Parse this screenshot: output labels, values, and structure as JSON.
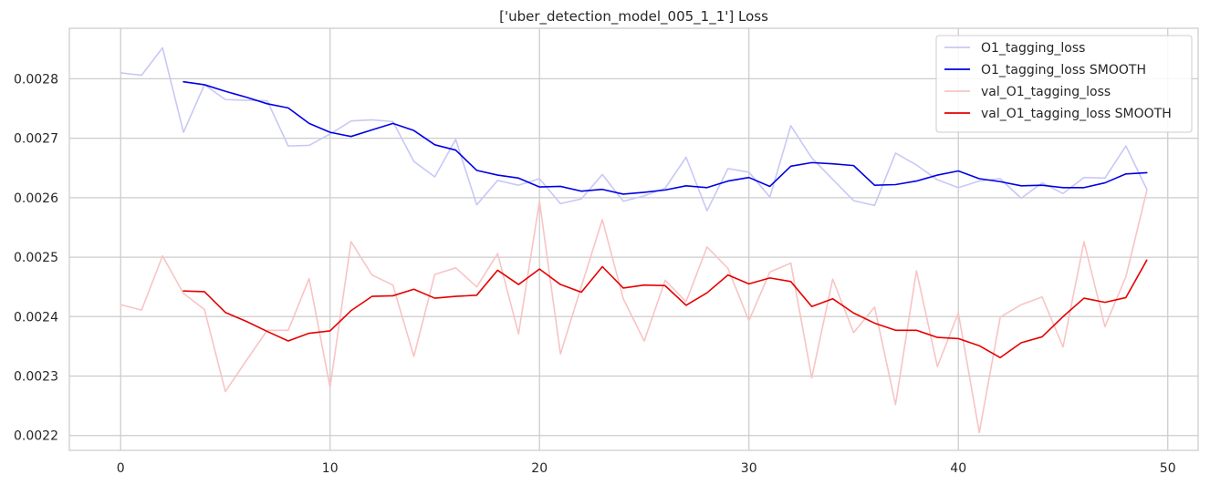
{
  "chart_data": {
    "type": "line",
    "title": "['uber_detection_model_005_1_1'] Loss",
    "xlabel": "",
    "ylabel": "",
    "xlim": [
      -2.45,
      51.45
    ],
    "ylim": [
      0.002175,
      0.002885
    ],
    "x_ticks": [
      0,
      10,
      20,
      30,
      40,
      50
    ],
    "y_ticks": [
      0.0022,
      0.0023,
      0.0024,
      0.0025,
      0.0026,
      0.0027,
      0.0028
    ],
    "grid": true,
    "legend_position": "top-right",
    "series": [
      {
        "name": "O1_tagging_loss",
        "color": "#c8c8f6",
        "x": [
          0,
          1,
          2,
          3,
          4,
          5,
          6,
          7,
          8,
          9,
          10,
          11,
          12,
          13,
          14,
          15,
          16,
          17,
          18,
          19,
          20,
          21,
          22,
          23,
          24,
          25,
          26,
          27,
          28,
          29,
          30,
          31,
          32,
          33,
          34,
          35,
          36,
          37,
          38,
          39,
          40,
          41,
          42,
          43,
          44,
          45,
          46,
          47,
          48,
          49
        ],
        "values": [
          0.00281,
          0.002806,
          0.002852,
          0.00271,
          0.00279,
          0.002765,
          0.002764,
          0.002763,
          0.002687,
          0.002688,
          0.002707,
          0.002729,
          0.002731,
          0.002728,
          0.002661,
          0.002635,
          0.002698,
          0.002588,
          0.002629,
          0.002621,
          0.002632,
          0.00259,
          0.002598,
          0.002639,
          0.002594,
          0.002603,
          0.002616,
          0.002668,
          0.002578,
          0.002649,
          0.002643,
          0.002601,
          0.002721,
          0.002667,
          0.002631,
          0.002595,
          0.002587,
          0.002675,
          0.002655,
          0.00263,
          0.002617,
          0.002628,
          0.002632,
          0.002599,
          0.002625,
          0.002607,
          0.002634,
          0.002633,
          0.002687,
          0.002614
        ]
      },
      {
        "name": "O1_tagging_loss SMOOTH",
        "color": "#0000e6",
        "x": [
          3,
          4,
          5,
          6,
          7,
          8,
          9,
          10,
          11,
          12,
          13,
          14,
          15,
          16,
          17,
          18,
          19,
          20,
          21,
          22,
          23,
          24,
          25,
          26,
          27,
          28,
          29,
          30,
          31,
          32,
          33,
          34,
          35,
          36,
          37,
          38,
          39,
          40,
          41,
          42,
          43,
          44,
          45,
          46,
          47,
          48,
          49
        ],
        "values": [
          0.002795,
          0.00279,
          0.002779,
          0.002769,
          0.002758,
          0.002751,
          0.002725,
          0.00271,
          0.002703,
          0.002714,
          0.002725,
          0.002713,
          0.002689,
          0.00268,
          0.002646,
          0.002638,
          0.002633,
          0.002618,
          0.002619,
          0.002611,
          0.002614,
          0.002606,
          0.002609,
          0.002613,
          0.00262,
          0.002617,
          0.002628,
          0.002634,
          0.002619,
          0.002653,
          0.002659,
          0.002657,
          0.002654,
          0.002621,
          0.002622,
          0.002628,
          0.002638,
          0.002645,
          0.002632,
          0.002627,
          0.00262,
          0.002621,
          0.002617,
          0.002617,
          0.002625,
          0.00264,
          0.002642
        ]
      },
      {
        "name": "val_O1_tagging_loss",
        "color": "#f8c4c4",
        "x": [
          0,
          1,
          2,
          3,
          4,
          5,
          6,
          7,
          8,
          9,
          10,
          11,
          12,
          13,
          14,
          15,
          16,
          17,
          18,
          19,
          20,
          21,
          22,
          23,
          24,
          25,
          26,
          27,
          28,
          29,
          30,
          31,
          32,
          33,
          34,
          35,
          36,
          37,
          38,
          39,
          40,
          41,
          42,
          43,
          44,
          45,
          46,
          47,
          48,
          49
        ],
        "values": [
          0.00242,
          0.002411,
          0.002502,
          0.002439,
          0.002412,
          0.002274,
          0.002326,
          0.002377,
          0.002377,
          0.002464,
          0.002281,
          0.002526,
          0.00247,
          0.002453,
          0.002333,
          0.002471,
          0.002482,
          0.00245,
          0.002506,
          0.002371,
          0.002594,
          0.002337,
          0.002451,
          0.002563,
          0.00243,
          0.002359,
          0.002461,
          0.002425,
          0.002517,
          0.002481,
          0.002393,
          0.002475,
          0.00249,
          0.002297,
          0.002463,
          0.002373,
          0.002416,
          0.002252,
          0.002477,
          0.002316,
          0.002406,
          0.002205,
          0.002399,
          0.00242,
          0.002433,
          0.002349,
          0.002526,
          0.002383,
          0.002467,
          0.002612
        ]
      },
      {
        "name": "val_O1_tagging_loss SMOOTH",
        "color": "#e60000",
        "x": [
          3,
          4,
          5,
          6,
          7,
          8,
          9,
          10,
          11,
          12,
          13,
          14,
          15,
          16,
          17,
          18,
          19,
          20,
          21,
          22,
          23,
          24,
          25,
          26,
          27,
          28,
          29,
          30,
          31,
          32,
          33,
          34,
          35,
          36,
          37,
          38,
          39,
          40,
          41,
          42,
          43,
          44,
          45,
          46,
          47,
          48,
          49
        ],
        "values": [
          0.002443,
          0.002442,
          0.002407,
          0.002392,
          0.002375,
          0.002359,
          0.002372,
          0.002376,
          0.00241,
          0.002434,
          0.002435,
          0.002446,
          0.002431,
          0.002434,
          0.002436,
          0.002478,
          0.002454,
          0.00248,
          0.002454,
          0.002441,
          0.002484,
          0.002448,
          0.002453,
          0.002452,
          0.002419,
          0.00244,
          0.00247,
          0.002455,
          0.002465,
          0.002459,
          0.002417,
          0.00243,
          0.002406,
          0.002389,
          0.002377,
          0.002377,
          0.002365,
          0.002363,
          0.002351,
          0.002331,
          0.002356,
          0.002366,
          0.0024,
          0.002431,
          0.002424,
          0.002432,
          0.002495
        ]
      }
    ]
  }
}
